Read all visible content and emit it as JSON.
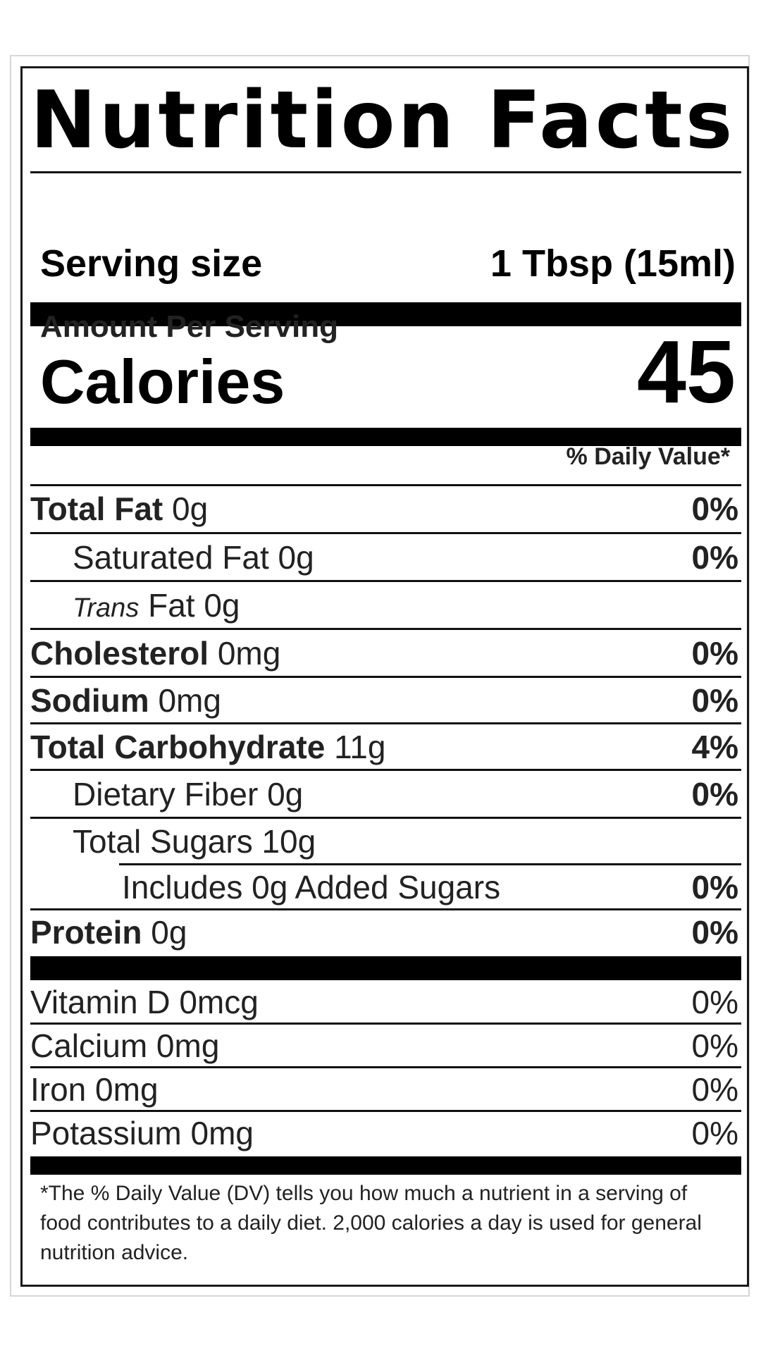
{
  "title": "Nutrition Facts",
  "serving": {
    "label": "Serving size",
    "value": "1 Tbsp (15ml)"
  },
  "amount_per_serving": "Amount Per Serving",
  "calories": {
    "label": "Calories",
    "value": "45"
  },
  "dv_header": "% Daily Value*",
  "nutrients": {
    "total_fat": {
      "label": "Total Fat",
      "amount": "0g",
      "dv": "0%"
    },
    "saturated_fat": {
      "label": "Saturated Fat 0g",
      "dv": "0%"
    },
    "trans_fat": {
      "label_italic": "Trans",
      "label": "Fat 0g"
    },
    "cholesterol": {
      "label": "Cholesterol",
      "amount": "0mg",
      "dv": "0%"
    },
    "sodium": {
      "label": "Sodium",
      "amount": "0mg",
      "dv": "0%"
    },
    "total_carb": {
      "label": "Total Carbohydrate",
      "amount": "11g",
      "dv": "4%"
    },
    "dietary_fiber": {
      "label": "Dietary Fiber 0g",
      "dv": "0%"
    },
    "total_sugars": {
      "label": "Total Sugars 10g"
    },
    "added_sugars": {
      "label": "Includes 0g Added Sugars",
      "dv": "0%"
    },
    "protein": {
      "label": "Protein",
      "amount": "0g",
      "dv": "0%"
    }
  },
  "vitamins": {
    "vitamin_d": {
      "label": "Vitamin D 0mcg",
      "dv": "0%"
    },
    "calcium": {
      "label": "Calcium 0mg",
      "dv": "0%"
    },
    "iron": {
      "label": "Iron 0mg",
      "dv": "0%"
    },
    "potassium": {
      "label": "Potassium 0mg",
      "dv": "0%"
    }
  },
  "footnote": "*The % Daily Value (DV) tells you how much a nutrient in a serving of food contributes to a daily diet. 2,000 calories a day is used for general nutrition advice."
}
